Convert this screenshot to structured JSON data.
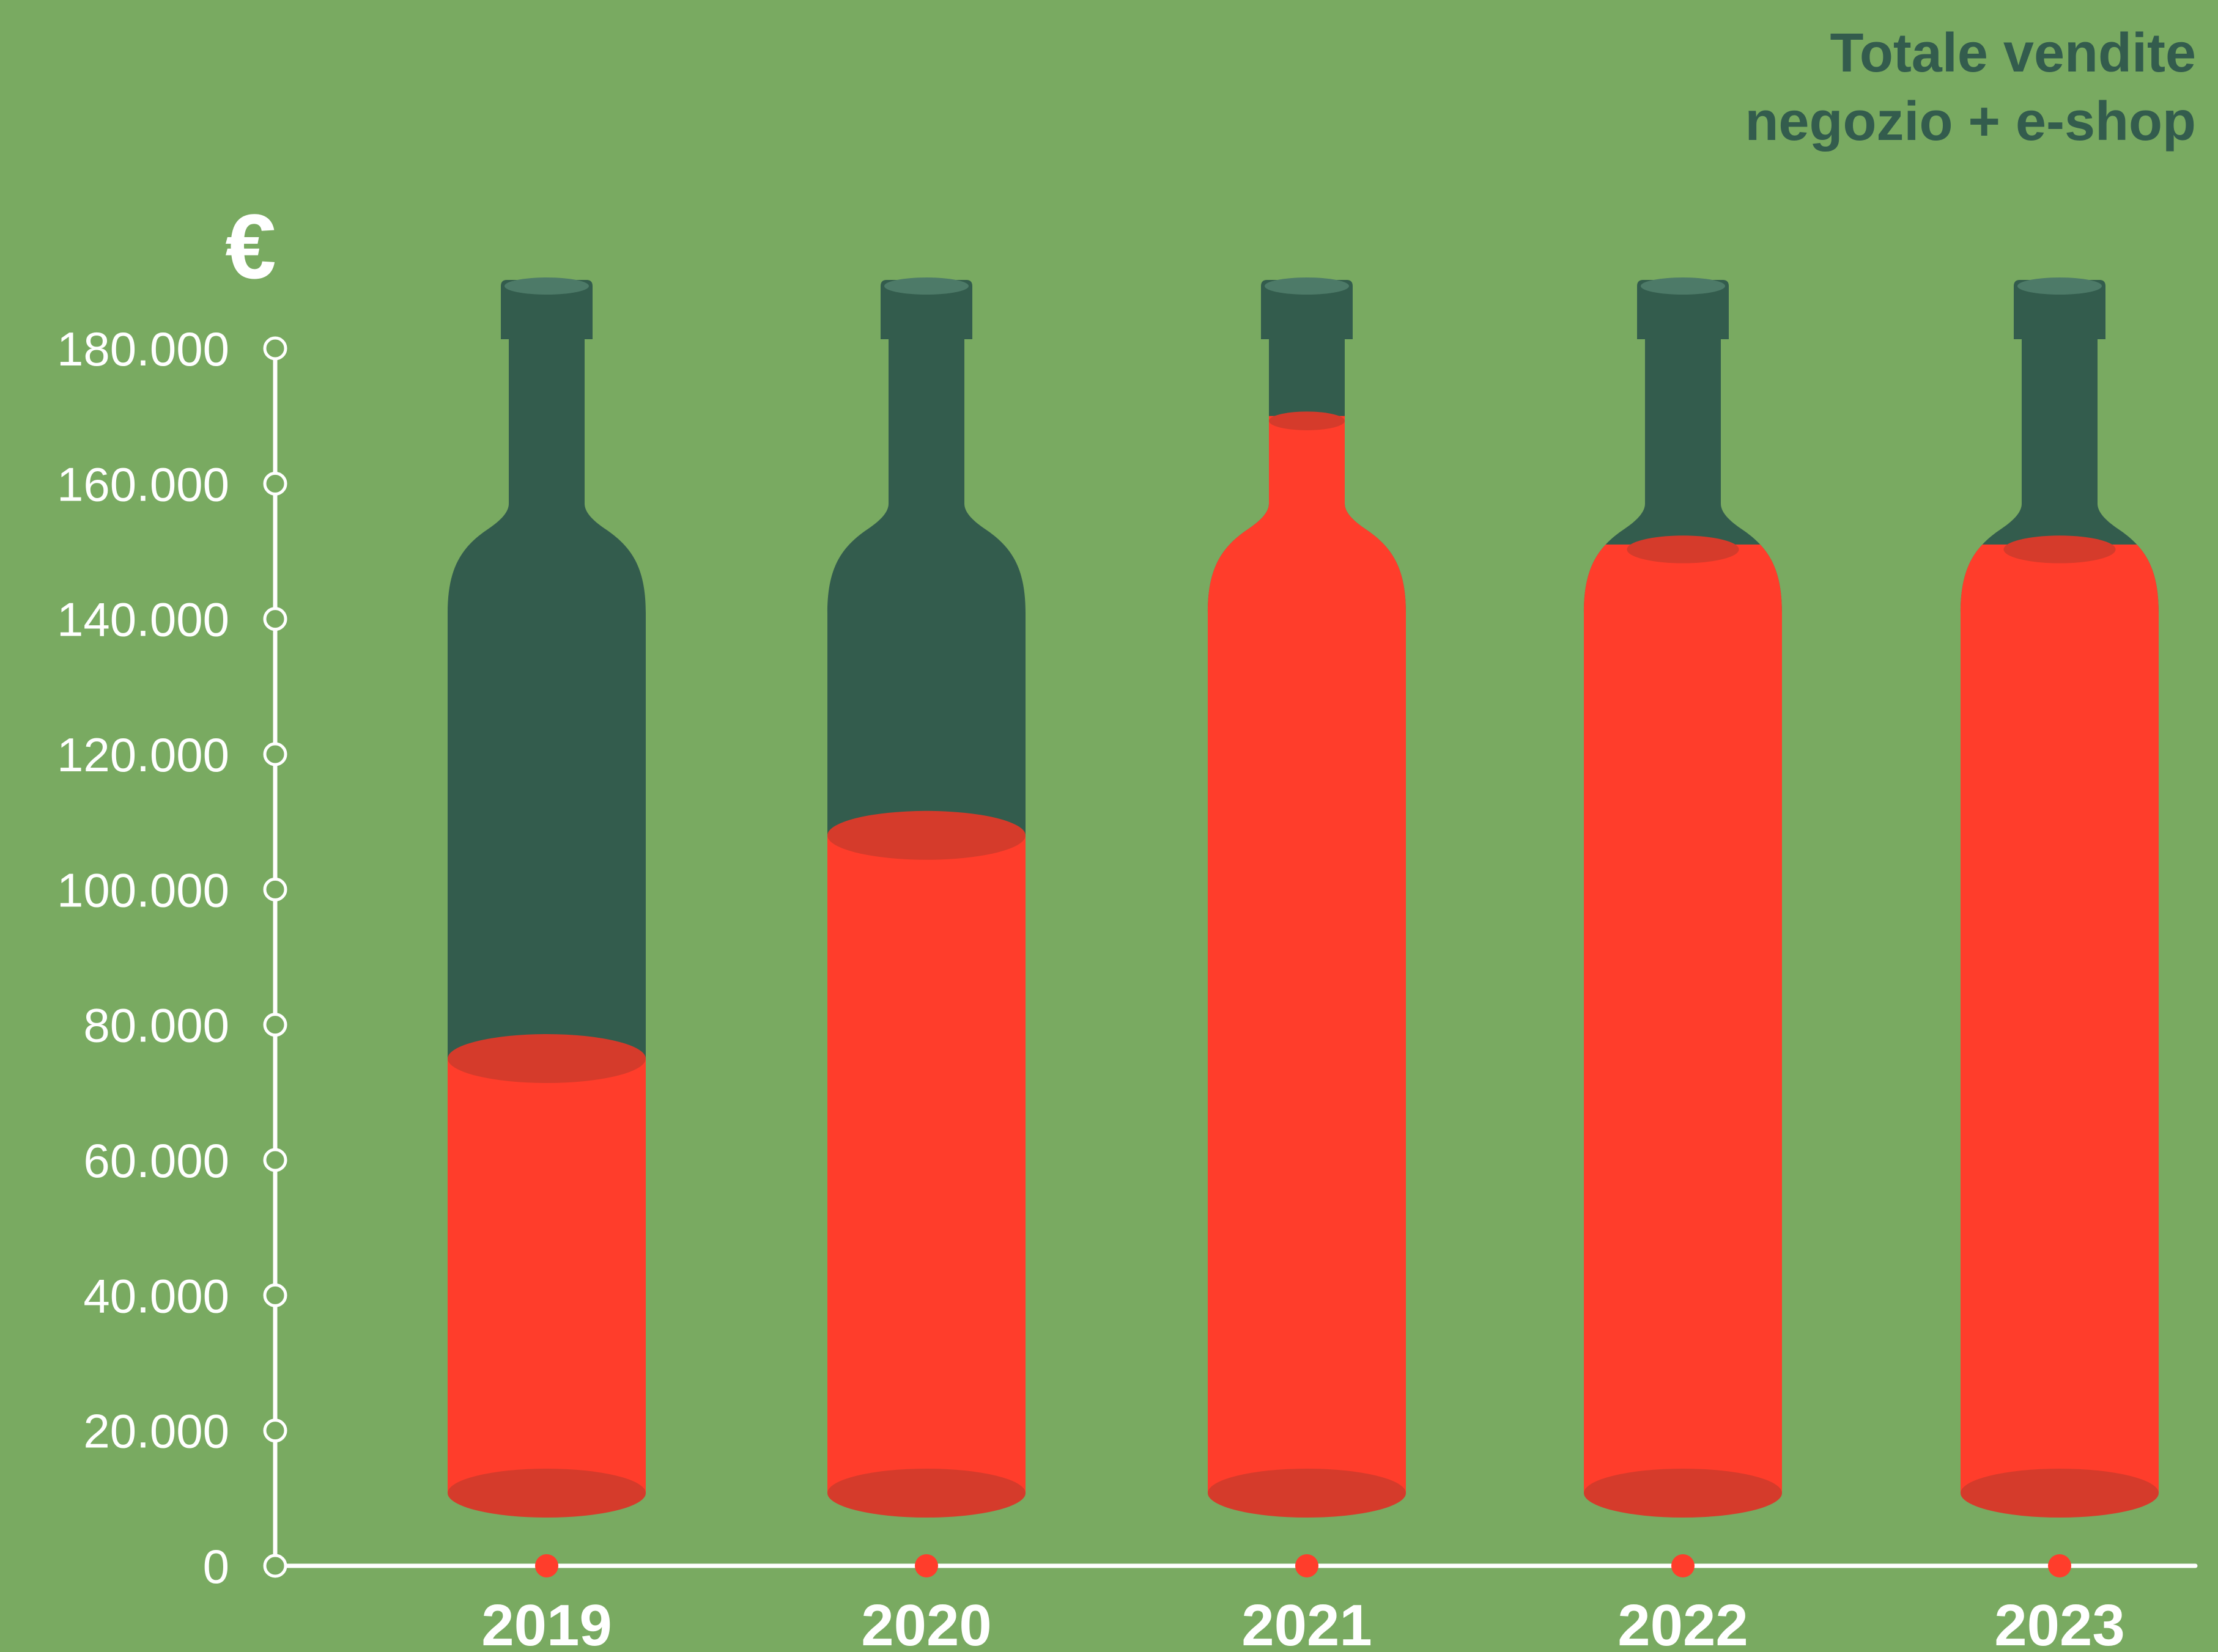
{
  "chart_data": {
    "type": "bar",
    "title": "Totale vendite",
    "subtitle": "negozio + e-shop",
    "ylabel": "€",
    "xlabel": "",
    "categories": [
      "2019",
      "2020",
      "2021",
      "2022",
      "2023"
    ],
    "values": [
      75000,
      108000,
      170000,
      151000,
      151000
    ],
    "ylim": [
      0,
      180000
    ],
    "yticks": [
      0,
      20000,
      40000,
      60000,
      80000,
      100000,
      120000,
      140000,
      160000,
      180000
    ],
    "ytick_labels": [
      "0",
      "20.000",
      "40.000",
      "60.000",
      "80.000",
      "100.000",
      "120.000",
      "140.000",
      "160.000",
      "180.000"
    ],
    "grid": false,
    "legend": "none"
  },
  "colors": {
    "background": "#79AA61",
    "bottle": "#335C4D",
    "bottle_cap": "#4D7A68",
    "fill": "#FF3D2B",
    "fill_surface": "#D53B2B",
    "axis": "#FFFFFF",
    "title": "#335C4D"
  }
}
